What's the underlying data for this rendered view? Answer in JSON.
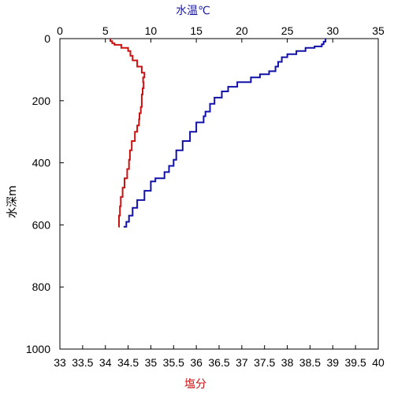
{
  "chart_data": {
    "type": "line",
    "top_axis_label": "水温℃",
    "bottom_axis_label": "塩分",
    "left_axis_label": "水深m",
    "top_axis": {
      "range": [
        0,
        35
      ],
      "ticks": [
        "0",
        "5",
        "10",
        "15",
        "20",
        "25",
        "30",
        "35"
      ]
    },
    "bottom_axis": {
      "range": [
        33,
        40
      ],
      "ticks": [
        "33",
        "33.5",
        "34",
        "34.5",
        "35",
        "35.5",
        "36",
        "36.5",
        "37",
        "37.5",
        "38",
        "38.5",
        "39",
        "39.5",
        "40"
      ]
    },
    "left_axis": {
      "range": [
        0,
        1000
      ],
      "inverted": true,
      "ticks": [
        "0",
        "200",
        "400",
        "600",
        "800",
        "1000"
      ]
    },
    "grid": false,
    "series": [
      {
        "color": "#cc1111",
        "x_axis": "bottom",
        "points": [
          [
            34.11,
            0
          ],
          [
            34.15,
            8
          ],
          [
            34.2,
            15
          ],
          [
            34.35,
            20
          ],
          [
            34.5,
            30
          ],
          [
            34.55,
            40
          ],
          [
            34.6,
            55
          ],
          [
            34.7,
            70
          ],
          [
            34.8,
            90
          ],
          [
            34.86,
            110
          ],
          [
            34.83,
            125
          ],
          [
            34.84,
            140
          ],
          [
            34.82,
            160
          ],
          [
            34.8,
            180
          ],
          [
            34.8,
            200
          ],
          [
            34.78,
            220
          ],
          [
            34.75,
            240
          ],
          [
            34.74,
            260
          ],
          [
            34.7,
            280
          ],
          [
            34.65,
            300
          ],
          [
            34.58,
            330
          ],
          [
            34.54,
            360
          ],
          [
            34.52,
            390
          ],
          [
            34.48,
            420
          ],
          [
            34.42,
            450
          ],
          [
            34.38,
            480
          ],
          [
            34.34,
            510
          ],
          [
            34.32,
            540
          ],
          [
            34.3,
            570
          ],
          [
            34.29,
            606
          ]
        ]
      },
      {
        "color": "#1111aa",
        "x_axis": "top",
        "points": [
          [
            29.2,
            0
          ],
          [
            29.0,
            10
          ],
          [
            28.8,
            18
          ],
          [
            28.0,
            25
          ],
          [
            27.0,
            30
          ],
          [
            26.0,
            40
          ],
          [
            25.0,
            50
          ],
          [
            24.4,
            60
          ],
          [
            24.0,
            75
          ],
          [
            23.7,
            90
          ],
          [
            23.0,
            105
          ],
          [
            22.0,
            115
          ],
          [
            21.0,
            125
          ],
          [
            19.5,
            140
          ],
          [
            18.5,
            155
          ],
          [
            17.8,
            170
          ],
          [
            17.0,
            190
          ],
          [
            16.5,
            210
          ],
          [
            16.0,
            235
          ],
          [
            15.8,
            250
          ],
          [
            15.0,
            270
          ],
          [
            14.3,
            300
          ],
          [
            13.5,
            330
          ],
          [
            12.8,
            360
          ],
          [
            12.5,
            390
          ],
          [
            12.0,
            410
          ],
          [
            11.5,
            430
          ],
          [
            10.5,
            450
          ],
          [
            10.0,
            460
          ],
          [
            9.3,
            490
          ],
          [
            8.5,
            520
          ],
          [
            8.0,
            545
          ],
          [
            7.6,
            570
          ],
          [
            7.3,
            590
          ],
          [
            7.0,
            606
          ]
        ]
      }
    ]
  }
}
